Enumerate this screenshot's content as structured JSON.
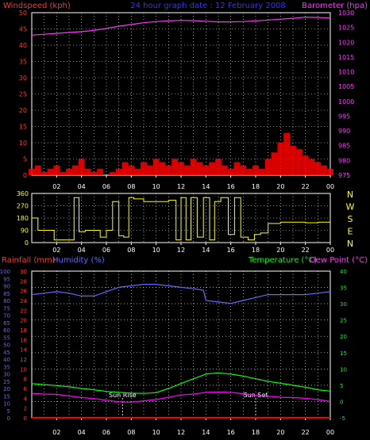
{
  "chart_data": [
    {
      "type": "line",
      "panel": "wind-barometer",
      "title": "24 hour graph date : 12 February 2008",
      "left_axis_label": "Windspeed (kph)",
      "right_axis_label": "Barometer (hpa)",
      "ylim_left": [
        0,
        50
      ],
      "ylim_right": [
        975,
        1030
      ],
      "left_ticks": [
        "0",
        "5",
        "10",
        "15",
        "20",
        "25",
        "30",
        "35",
        "40",
        "45",
        "50"
      ],
      "right_ticks": [
        "975",
        "980",
        "985",
        "990",
        "995",
        "1000",
        "1005",
        "1010",
        "1015",
        "1020",
        "1025",
        "1030"
      ],
      "x_ticks": [
        "02",
        "04",
        "06",
        "08",
        "10",
        "12",
        "14",
        "16",
        "18",
        "20",
        "22",
        "00"
      ],
      "x_hours": [
        2,
        4,
        6,
        8,
        10,
        12,
        14,
        16,
        18,
        20,
        22,
        24
      ],
      "series": [
        {
          "name": "Barometer (hpa)",
          "axis": "right",
          "color": "#ff33ff",
          "x": [
            0,
            1,
            2,
            3,
            4,
            5,
            6,
            7,
            8,
            9,
            10,
            11,
            12,
            13,
            14,
            15,
            16,
            17,
            18,
            19,
            20,
            21,
            22,
            23,
            24
          ],
          "values": [
            1022.4,
            1022.7,
            1023.0,
            1023.3,
            1023.6,
            1024.0,
            1024.7,
            1025.4,
            1026.0,
            1026.6,
            1027.0,
            1027.2,
            1027.4,
            1027.3,
            1027.1,
            1026.9,
            1026.9,
            1027.0,
            1027.2,
            1027.5,
            1027.8,
            1028.1,
            1028.5,
            1028.4,
            1028.2
          ]
        },
        {
          "name": "Windspeed (kph)",
          "axis": "left",
          "color": "#ff0000",
          "x": [
            0,
            0.5,
            1,
            1.5,
            2,
            2.5,
            3,
            3.5,
            4,
            4.5,
            5,
            5.5,
            6,
            6.5,
            7,
            7.5,
            8,
            8.5,
            9,
            9.5,
            10,
            10.5,
            11,
            11.5,
            12,
            12.5,
            13,
            13.5,
            14,
            14.5,
            15,
            15.5,
            16,
            16.5,
            17,
            17.5,
            18,
            18.5,
            19,
            19.5,
            20,
            20.5,
            21,
            21.5,
            22,
            22.5,
            23,
            23.5,
            24
          ],
          "values": [
            2,
            3,
            1,
            2,
            3,
            1,
            2,
            3,
            5,
            2,
            1,
            2,
            0,
            1,
            2,
            4,
            3,
            2,
            4,
            3,
            5,
            4,
            3,
            5,
            4,
            3,
            5,
            4,
            3,
            4,
            5,
            3,
            2,
            4,
            3,
            2,
            3,
            2,
            5,
            7,
            10,
            13,
            9,
            8,
            6,
            5,
            4,
            3,
            2
          ]
        }
      ]
    },
    {
      "type": "line",
      "panel": "wind-direction",
      "ylim": [
        0,
        360
      ],
      "left_ticks": [
        "0",
        "90",
        "180",
        "270",
        "360"
      ],
      "compass_labels": [
        "N",
        "W",
        "S",
        "E",
        "N"
      ],
      "x_ticks": [
        "02",
        "04",
        "06",
        "08",
        "10",
        "12",
        "14",
        "16",
        "18",
        "20",
        "22",
        "00"
      ],
      "series": [
        {
          "name": "Wind direction",
          "color": "#ffff00",
          "x": [
            0,
            0.5,
            1,
            1.4,
            1.8,
            2.5,
            3.0,
            3.4,
            3.8,
            4.3,
            4.8,
            5.5,
            6.0,
            6.5,
            7.0,
            7.4,
            7.8,
            8.2,
            9.0,
            10,
            11,
            11.6,
            12,
            12.4,
            12.8,
            13.3,
            13.8,
            14.3,
            14.7,
            15.2,
            15.8,
            16.3,
            16.8,
            17.4,
            17.9,
            18.4,
            19,
            20,
            21,
            22,
            23,
            24
          ],
          "values": [
            180,
            90,
            90,
            90,
            20,
            20,
            20,
            330,
            80,
            90,
            90,
            40,
            90,
            300,
            50,
            40,
            330,
            320,
            300,
            300,
            310,
            20,
            330,
            20,
            330,
            40,
            330,
            20,
            300,
            330,
            60,
            330,
            40,
            20,
            60,
            70,
            140,
            150,
            150,
            145,
            150,
            150
          ]
        }
      ]
    },
    {
      "type": "line",
      "panel": "rain-humidity-temperature",
      "rainfall_label": "Rainfall (mm)",
      "humidity_label": "Humidity (%)",
      "temperature_label": "Temperature (°C)",
      "dewpoint_label": "Dew Point (°C)",
      "ylim_rainfall": [
        0,
        30
      ],
      "ylim_humidity": [
        0,
        100
      ],
      "ylim_temperature": [
        -5,
        40
      ],
      "rainfall_ticks": [
        "0",
        "2",
        "4",
        "6",
        "8",
        "10",
        "12",
        "14",
        "16",
        "18",
        "20",
        "22",
        "24",
        "26",
        "28",
        "30"
      ],
      "humidity_ticks": [
        "0",
        "5",
        "10",
        "15",
        "20",
        "25",
        "30",
        "35",
        "40",
        "45",
        "50",
        "55",
        "60",
        "65",
        "70",
        "75",
        "80",
        "85",
        "90",
        "95",
        "100"
      ],
      "temperature_ticks": [
        "-5",
        "0",
        "5",
        "10",
        "15",
        "20",
        "25",
        "30",
        "35",
        "40"
      ],
      "x_ticks": [
        "02",
        "04",
        "06",
        "08",
        "10",
        "12",
        "14",
        "16",
        "18",
        "20",
        "22",
        "00"
      ],
      "events": [
        {
          "label": "Sun Rise",
          "hour": 7.3
        },
        {
          "label": "Sun Set",
          "hour": 18.0
        }
      ],
      "series": [
        {
          "name": "Humidity (%)",
          "axis": "humidity",
          "color": "#6666ff",
          "x": [
            0,
            1,
            2,
            3,
            4,
            5,
            6,
            7,
            8,
            9,
            10,
            11,
            12,
            13,
            13.8,
            14,
            15,
            16,
            17,
            18,
            19,
            20,
            21,
            22,
            23,
            24
          ],
          "values": [
            84,
            85,
            86,
            85,
            83,
            83,
            86,
            89,
            90,
            91,
            91,
            90,
            89,
            88,
            87,
            80,
            79,
            78,
            80,
            82,
            84,
            84,
            84,
            84,
            85,
            86
          ],
          "clip": true
        },
        {
          "name": "Temperature (°C)",
          "axis": "temperature",
          "color": "#00ff00",
          "x": [
            0,
            1,
            2,
            3,
            4,
            5,
            6,
            7,
            8,
            9,
            10,
            11,
            12,
            13,
            14,
            15,
            16,
            17,
            18,
            19,
            20,
            21,
            22,
            23,
            24
          ],
          "values": [
            5.5,
            5.2,
            4.9,
            4.5,
            4.0,
            3.6,
            3.1,
            2.8,
            2.6,
            2.5,
            2.7,
            4.0,
            5.5,
            7.0,
            8.4,
            8.8,
            8.4,
            7.8,
            7.0,
            6.2,
            5.6,
            5.0,
            4.4,
            3.6,
            3.2
          ]
        },
        {
          "name": "Dew Point (°C)",
          "axis": "temperature",
          "color": "#ff00ff",
          "x": [
            0,
            1,
            2,
            3,
            4,
            5,
            6,
            7,
            8,
            9,
            10,
            11,
            12,
            13,
            14,
            15,
            16,
            17,
            18,
            19,
            20,
            21,
            22,
            23,
            24
          ],
          "values": [
            2.5,
            2.3,
            2.2,
            1.7,
            1.2,
            0.9,
            0.4,
            -0.1,
            -0.2,
            0.2,
            0.6,
            1.3,
            2.0,
            2.3,
            2.8,
            2.9,
            2.8,
            2.4,
            1.9,
            1.6,
            1.3,
            1.2,
            1.0,
            0.6,
            0.0
          ]
        },
        {
          "name": "Rainfall (mm)",
          "axis": "rainfall",
          "color": "#ff0000",
          "x": [
            0,
            24
          ],
          "values": [
            0,
            0
          ]
        }
      ]
    }
  ]
}
